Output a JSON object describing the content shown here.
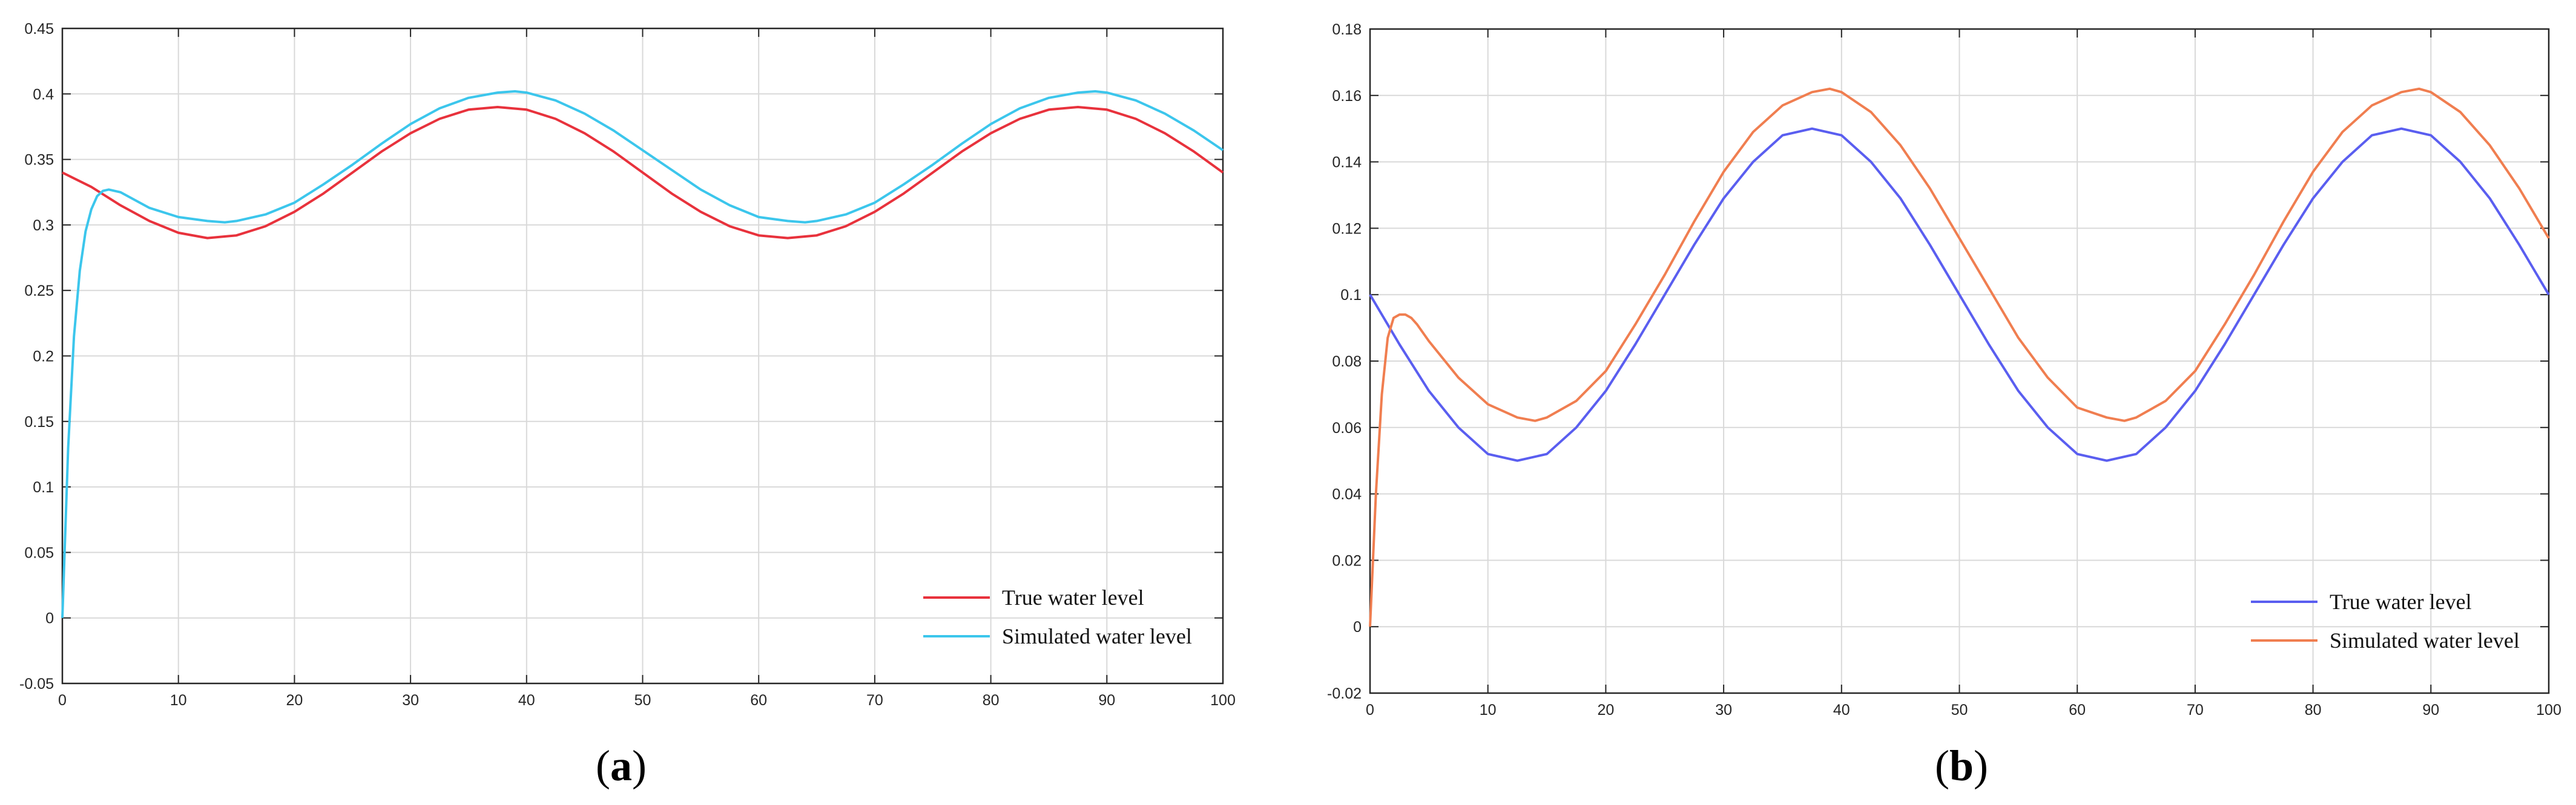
{
  "chart_data": [
    {
      "type": "line",
      "panel_label": "a",
      "xlim": [
        0,
        100
      ],
      "ylim": [
        -0.05,
        0.45
      ],
      "xticks": [
        0,
        10,
        20,
        30,
        40,
        50,
        60,
        70,
        80,
        90,
        100
      ],
      "yticks": [
        -0.05,
        0,
        0.05,
        0.1,
        0.15,
        0.2,
        0.25,
        0.3,
        0.35,
        0.4,
        0.45
      ],
      "xtick_labels": [
        "0",
        "10",
        "20",
        "30",
        "40",
        "50",
        "60",
        "70",
        "80",
        "90",
        "100"
      ],
      "ytick_labels": [
        "-0.05",
        "0",
        "0.05",
        "0.1",
        "0.15",
        "0.2",
        "0.25",
        "0.3",
        "0.35",
        "0.4",
        "0.45"
      ],
      "grid": true,
      "legend_position": "bottom-right",
      "series": [
        {
          "name": "True water level",
          "color": "#e8323c",
          "x": [
            0,
            2.5,
            5,
            7.5,
            10,
            12.5,
            15,
            17.5,
            20,
            22.5,
            25,
            27.5,
            30,
            32.5,
            35,
            37.5,
            40,
            42.5,
            45,
            47.5,
            50,
            52.5,
            55,
            57.5,
            60,
            62.5,
            65,
            67.5,
            70,
            72.5,
            75,
            77.5,
            80,
            82.5,
            85,
            87.5,
            90,
            92.5,
            95,
            97.5,
            100
          ],
          "y": [
            0.34,
            0.329,
            0.315,
            0.303,
            0.294,
            0.29,
            0.292,
            0.299,
            0.31,
            0.324,
            0.34,
            0.356,
            0.37,
            0.381,
            0.388,
            0.39,
            0.388,
            0.381,
            0.37,
            0.356,
            0.34,
            0.324,
            0.31,
            0.299,
            0.292,
            0.29,
            0.292,
            0.299,
            0.31,
            0.324,
            0.34,
            0.356,
            0.37,
            0.381,
            0.388,
            0.39,
            0.388,
            0.381,
            0.37,
            0.356,
            0.34
          ]
        },
        {
          "name": "Simulated water level",
          "color": "#3cc6ec",
          "x": [
            0,
            0.5,
            1,
            1.5,
            2,
            2.5,
            3,
            3.5,
            4,
            5,
            7.5,
            10,
            12.5,
            14,
            15,
            17.5,
            20,
            22.5,
            25,
            27.5,
            30,
            32.5,
            35,
            37.5,
            39,
            40,
            42.5,
            45,
            47.5,
            50,
            52.5,
            55,
            57.5,
            60,
            62.5,
            64,
            65,
            67.5,
            70,
            72.5,
            75,
            77.5,
            80,
            82.5,
            85,
            87.5,
            89,
            90,
            92.5,
            95,
            97.5,
            100
          ],
          "y": [
            0,
            0.13,
            0.215,
            0.265,
            0.295,
            0.312,
            0.322,
            0.326,
            0.327,
            0.325,
            0.313,
            0.306,
            0.303,
            0.302,
            0.303,
            0.308,
            0.317,
            0.331,
            0.346,
            0.362,
            0.377,
            0.389,
            0.397,
            0.401,
            0.402,
            0.401,
            0.395,
            0.385,
            0.372,
            0.357,
            0.342,
            0.327,
            0.315,
            0.306,
            0.303,
            0.302,
            0.303,
            0.308,
            0.317,
            0.331,
            0.346,
            0.362,
            0.377,
            0.389,
            0.397,
            0.401,
            0.402,
            0.401,
            0.395,
            0.385,
            0.372,
            0.357
          ]
        }
      ]
    },
    {
      "type": "line",
      "panel_label": "b",
      "xlim": [
        0,
        100
      ],
      "ylim": [
        -0.02,
        0.18
      ],
      "xticks": [
        0,
        10,
        20,
        30,
        40,
        50,
        60,
        70,
        80,
        90,
        100
      ],
      "yticks": [
        -0.02,
        0,
        0.02,
        0.04,
        0.06,
        0.08,
        0.1,
        0.12,
        0.14,
        0.16,
        0.18
      ],
      "xtick_labels": [
        "0",
        "10",
        "20",
        "30",
        "40",
        "50",
        "60",
        "70",
        "80",
        "90",
        "100"
      ],
      "ytick_labels": [
        "-0.02",
        "0",
        "0.02",
        "0.04",
        "0.06",
        "0.08",
        "0.1",
        "0.12",
        "0.14",
        "0.16",
        "0.18"
      ],
      "grid": true,
      "legend_position": "bottom-right",
      "series": [
        {
          "name": "True water level",
          "color": "#5a5ef0",
          "x": [
            0,
            2.5,
            5,
            7.5,
            10,
            12.5,
            15,
            17.5,
            20,
            22.5,
            25,
            27.5,
            30,
            32.5,
            35,
            37.5,
            40,
            42.5,
            45,
            47.5,
            50,
            52.5,
            55,
            57.5,
            60,
            62.5,
            65,
            67.5,
            70,
            72.5,
            75,
            77.5,
            80,
            82.5,
            85,
            87.5,
            90,
            92.5,
            95,
            97.5,
            100
          ],
          "y": [
            0.1,
            0.085,
            0.071,
            0.06,
            0.052,
            0.05,
            0.052,
            0.06,
            0.071,
            0.085,
            0.1,
            0.115,
            0.129,
            0.14,
            0.148,
            0.15,
            0.148,
            0.14,
            0.129,
            0.115,
            0.1,
            0.085,
            0.071,
            0.06,
            0.052,
            0.05,
            0.052,
            0.06,
            0.071,
            0.085,
            0.1,
            0.115,
            0.129,
            0.14,
            0.148,
            0.15,
            0.148,
            0.14,
            0.129,
            0.115,
            0.1
          ]
        },
        {
          "name": "Simulated water level",
          "color": "#f07e50",
          "x": [
            0,
            0.5,
            1,
            1.5,
            2,
            2.5,
            3,
            3.5,
            4,
            5,
            7.5,
            10,
            12.5,
            14,
            15,
            17.5,
            20,
            22.5,
            25,
            27.5,
            30,
            32.5,
            35,
            37.5,
            39,
            40,
            42.5,
            45,
            47.5,
            50,
            52.5,
            55,
            57.5,
            60,
            62.5,
            64,
            65,
            67.5,
            70,
            72.5,
            75,
            77.5,
            80,
            82.5,
            85,
            87.5,
            89,
            90,
            92.5,
            95,
            97.5,
            100
          ],
          "y": [
            0,
            0.04,
            0.07,
            0.087,
            0.093,
            0.094,
            0.094,
            0.093,
            0.091,
            0.086,
            0.075,
            0.067,
            0.063,
            0.062,
            0.063,
            0.068,
            0.077,
            0.091,
            0.106,
            0.122,
            0.137,
            0.149,
            0.157,
            0.161,
            0.162,
            0.161,
            0.155,
            0.145,
            0.132,
            0.117,
            0.102,
            0.087,
            0.075,
            0.066,
            0.063,
            0.062,
            0.063,
            0.068,
            0.077,
            0.091,
            0.106,
            0.122,
            0.137,
            0.149,
            0.157,
            0.161,
            0.162,
            0.161,
            0.155,
            0.145,
            0.132,
            0.117
          ]
        }
      ]
    }
  ]
}
